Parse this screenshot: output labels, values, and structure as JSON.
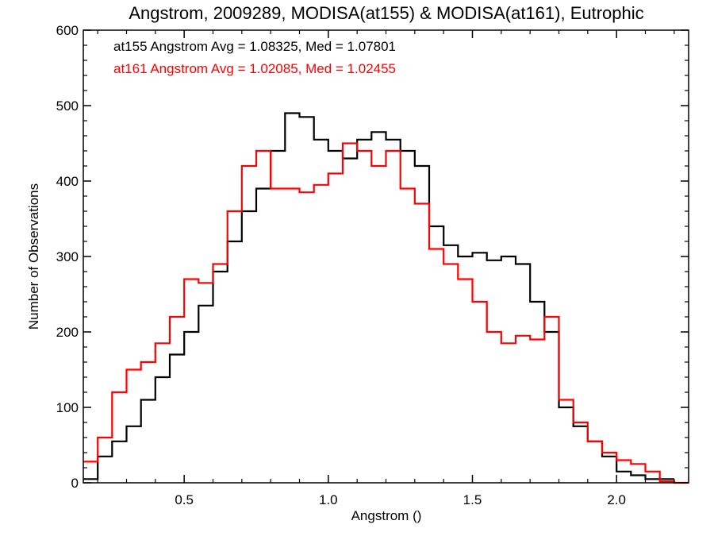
{
  "chart_data": {
    "type": "line",
    "step": true,
    "title": "Angstrom, 2009289, MODISA(at155) & MODISA(at161), Eutrophic",
    "xlabel": "Angstrom ()",
    "ylabel": "Number of Observations",
    "xlim": [
      0.15,
      2.25
    ],
    "ylim": [
      0,
      600
    ],
    "xticks": [
      0.5,
      1.0,
      1.5,
      2.0
    ],
    "xtick_labels": [
      "0.5",
      "1.0",
      "1.5",
      "2.0"
    ],
    "yticks": [
      0,
      100,
      200,
      300,
      400,
      500,
      600
    ],
    "ytick_labels": [
      "0",
      "100",
      "200",
      "300",
      "400",
      "500",
      "600"
    ],
    "grid": false,
    "annotations": [
      {
        "text": "at155 Angstrom Avg = 1.08325, Med = 1.07801",
        "color": "#000000"
      },
      {
        "text": "at161 Angstrom Avg = 1.02085, Med = 1.02455",
        "color": "#ff0000"
      }
    ],
    "series": [
      {
        "color": "#000000",
        "x": [
          0.15,
          0.2,
          0.25,
          0.3,
          0.35,
          0.4,
          0.45,
          0.5,
          0.55,
          0.6,
          0.65,
          0.7,
          0.75,
          0.8,
          0.85,
          0.9,
          0.95,
          1.0,
          1.05,
          1.1,
          1.15,
          1.2,
          1.25,
          1.3,
          1.35,
          1.4,
          1.45,
          1.5,
          1.55,
          1.6,
          1.65,
          1.7,
          1.75,
          1.8,
          1.85,
          1.9,
          1.95,
          2.0,
          2.05,
          2.1,
          2.15
        ],
        "y": [
          5,
          35,
          55,
          75,
          110,
          140,
          170,
          200,
          235,
          280,
          320,
          360,
          390,
          440,
          490,
          485,
          455,
          440,
          430,
          455,
          465,
          455,
          440,
          420,
          340,
          315,
          300,
          305,
          295,
          300,
          290,
          240,
          200,
          100,
          75,
          55,
          35,
          15,
          10,
          5,
          5
        ]
      },
      {
        "color": "#ff0000",
        "x": [
          0.15,
          0.2,
          0.25,
          0.3,
          0.35,
          0.4,
          0.45,
          0.5,
          0.55,
          0.6,
          0.65,
          0.7,
          0.75,
          0.8,
          0.85,
          0.9,
          0.95,
          1.0,
          1.05,
          1.1,
          1.15,
          1.2,
          1.25,
          1.3,
          1.35,
          1.4,
          1.45,
          1.5,
          1.55,
          1.6,
          1.65,
          1.7,
          1.75,
          1.8,
          1.85,
          1.9,
          1.95,
          2.0,
          2.05,
          2.1,
          2.15,
          2.2
        ],
        "y": [
          28,
          60,
          120,
          150,
          160,
          185,
          220,
          270,
          265,
          290,
          360,
          420,
          440,
          390,
          390,
          385,
          395,
          410,
          450,
          440,
          420,
          440,
          390,
          370,
          310,
          290,
          270,
          240,
          200,
          185,
          195,
          190,
          220,
          110,
          80,
          55,
          40,
          30,
          25,
          15,
          2,
          0
        ]
      }
    ]
  }
}
